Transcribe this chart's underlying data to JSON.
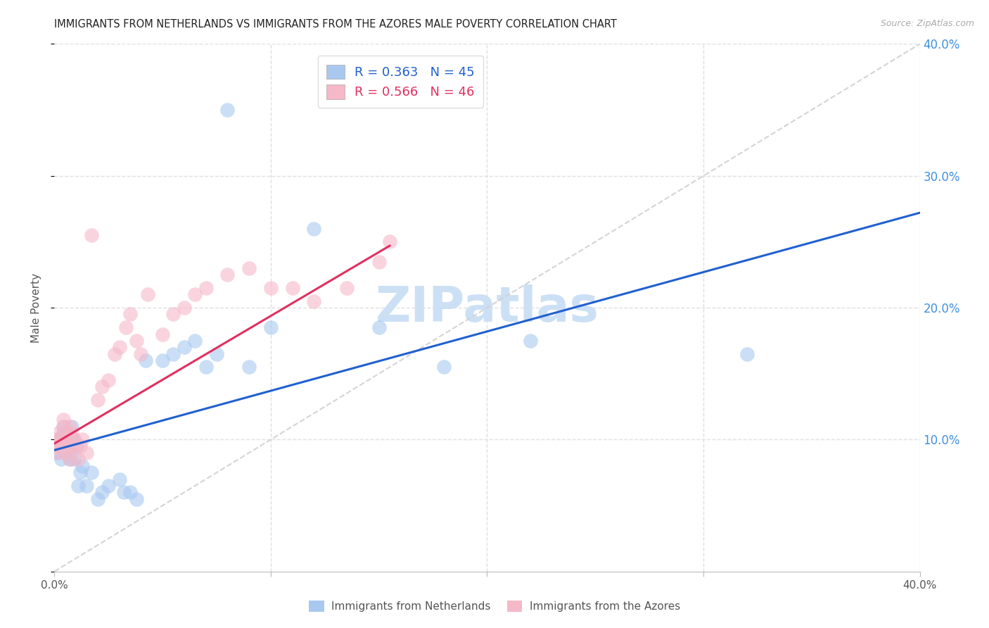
{
  "title": "IMMIGRANTS FROM NETHERLANDS VS IMMIGRANTS FROM THE AZORES MALE POVERTY CORRELATION CHART",
  "source": "Source: ZipAtlas.com",
  "ylabel": "Male Poverty",
  "xlim": [
    0.0,
    0.4
  ],
  "ylim": [
    0.0,
    0.4
  ],
  "legend1_R": "0.363",
  "legend1_N": "45",
  "legend2_R": "0.566",
  "legend2_N": "46",
  "blue_scatter_color": "#a8c8f0",
  "pink_scatter_color": "#f5b8c8",
  "blue_line_color": "#2060d0",
  "pink_line_color": "#e03060",
  "diagonal_color": "#d0d0d0",
  "grid_color": "#e0e0e0",
  "watermark_color": "#cce0f5",
  "nl_line_x0": 0.0,
  "nl_line_x1": 0.4,
  "nl_line_y0": 0.092,
  "nl_line_y1": 0.272,
  "az_line_x0": 0.0,
  "az_line_x1": 0.155,
  "az_line_y0": 0.097,
  "az_line_y1": 0.247,
  "netherlands_x": [
    0.001,
    0.002,
    0.002,
    0.003,
    0.003,
    0.004,
    0.004,
    0.005,
    0.005,
    0.006,
    0.006,
    0.007,
    0.007,
    0.008,
    0.008,
    0.009,
    0.009,
    0.01,
    0.011,
    0.012,
    0.013,
    0.015,
    0.017,
    0.02,
    0.022,
    0.025,
    0.03,
    0.032,
    0.035,
    0.038,
    0.042,
    0.05,
    0.055,
    0.06,
    0.065,
    0.07,
    0.075,
    0.08,
    0.09,
    0.1,
    0.12,
    0.15,
    0.18,
    0.22,
    0.32
  ],
  "netherlands_y": [
    0.09,
    0.095,
    0.1,
    0.085,
    0.095,
    0.105,
    0.11,
    0.09,
    0.1,
    0.095,
    0.105,
    0.085,
    0.095,
    0.1,
    0.11,
    0.085,
    0.1,
    0.095,
    0.065,
    0.075,
    0.08,
    0.065,
    0.075,
    0.055,
    0.06,
    0.065,
    0.07,
    0.06,
    0.06,
    0.055,
    0.16,
    0.16,
    0.165,
    0.17,
    0.175,
    0.155,
    0.165,
    0.35,
    0.155,
    0.185,
    0.26,
    0.185,
    0.155,
    0.175,
    0.165
  ],
  "azores_x": [
    0.001,
    0.001,
    0.002,
    0.002,
    0.003,
    0.003,
    0.004,
    0.004,
    0.005,
    0.005,
    0.006,
    0.006,
    0.007,
    0.007,
    0.008,
    0.008,
    0.009,
    0.01,
    0.011,
    0.012,
    0.013,
    0.015,
    0.017,
    0.02,
    0.022,
    0.025,
    0.028,
    0.03,
    0.033,
    0.035,
    0.038,
    0.04,
    0.043,
    0.05,
    0.055,
    0.06,
    0.065,
    0.07,
    0.08,
    0.09,
    0.1,
    0.11,
    0.12,
    0.135,
    0.15,
    0.155
  ],
  "azores_y": [
    0.095,
    0.1,
    0.09,
    0.105,
    0.095,
    0.1,
    0.11,
    0.115,
    0.09,
    0.1,
    0.095,
    0.105,
    0.085,
    0.11,
    0.095,
    0.105,
    0.1,
    0.095,
    0.085,
    0.095,
    0.1,
    0.09,
    0.255,
    0.13,
    0.14,
    0.145,
    0.165,
    0.17,
    0.185,
    0.195,
    0.175,
    0.165,
    0.21,
    0.18,
    0.195,
    0.2,
    0.21,
    0.215,
    0.225,
    0.23,
    0.215,
    0.215,
    0.205,
    0.215,
    0.235,
    0.25
  ]
}
